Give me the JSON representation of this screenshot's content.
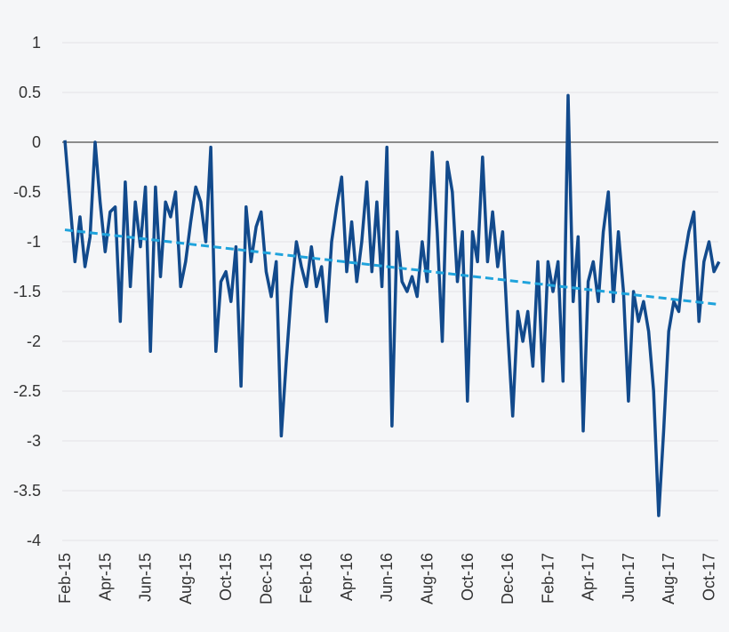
{
  "chart_data": {
    "type": "line",
    "categories": [
      "Feb-15",
      null,
      null,
      null,
      null,
      null,
      null,
      null,
      "Apr-15",
      null,
      null,
      null,
      null,
      null,
      null,
      null,
      "Jun-15",
      null,
      null,
      null,
      null,
      null,
      null,
      null,
      "Aug-15",
      null,
      null,
      null,
      null,
      null,
      null,
      null,
      "Oct-15",
      null,
      null,
      null,
      null,
      null,
      null,
      null,
      "Dec-15",
      null,
      null,
      null,
      null,
      null,
      null,
      null,
      "Feb-16",
      null,
      null,
      null,
      null,
      null,
      null,
      null,
      "Apr-16",
      null,
      null,
      null,
      null,
      null,
      null,
      null,
      "Jun-16",
      null,
      null,
      null,
      null,
      null,
      null,
      null,
      "Aug-16",
      null,
      null,
      null,
      null,
      null,
      null,
      null,
      "Oct-16",
      null,
      null,
      null,
      null,
      null,
      null,
      null,
      "Dec-16",
      null,
      null,
      null,
      null,
      null,
      null,
      null,
      "Feb-17",
      null,
      null,
      null,
      null,
      null,
      null,
      null,
      "Apr-17",
      null,
      null,
      null,
      null,
      null,
      null,
      null,
      "Jun-17",
      null,
      null,
      null,
      null,
      null,
      null,
      null,
      "Aug-17",
      null,
      null,
      null,
      null,
      null,
      null,
      null,
      "Oct-17",
      null,
      null
    ],
    "series": [
      {
        "color": "#124a8c",
        "values": [
          0.02,
          -0.6,
          -1.2,
          -0.75,
          -1.25,
          -0.95,
          0.0,
          -0.6,
          -1.1,
          -0.7,
          -0.65,
          -1.8,
          -0.4,
          -1.45,
          -0.6,
          -1.05,
          -0.45,
          -2.1,
          -0.45,
          -1.35,
          -0.6,
          -0.75,
          -0.5,
          -1.45,
          -1.2,
          -0.8,
          -0.45,
          -0.6,
          -1.0,
          -0.05,
          -2.1,
          -1.4,
          -1.3,
          -1.6,
          -1.05,
          -2.45,
          -0.65,
          -1.2,
          -0.85,
          -0.7,
          -1.3,
          -1.55,
          -1.2,
          -2.95,
          -2.2,
          -1.5,
          -1.0,
          -1.25,
          -1.45,
          -1.05,
          -1.45,
          -1.25,
          -1.8,
          -1.0,
          -0.65,
          -0.35,
          -1.3,
          -0.8,
          -1.4,
          -1.0,
          -0.4,
          -1.3,
          -0.6,
          -1.45,
          -0.05,
          -2.85,
          -0.9,
          -1.4,
          -1.5,
          -1.35,
          -1.55,
          -1.0,
          -1.4,
          -0.1,
          -0.9,
          -2.0,
          -0.2,
          -0.5,
          -1.4,
          -0.9,
          -2.6,
          -0.9,
          -1.2,
          -0.15,
          -1.2,
          -0.7,
          -1.25,
          -0.9,
          -1.9,
          -2.75,
          -1.7,
          -2.0,
          -1.7,
          -2.25,
          -1.2,
          -2.4,
          -1.2,
          -1.5,
          -1.2,
          -2.4,
          0.47,
          -1.6,
          -0.95,
          -2.9,
          -1.4,
          -1.2,
          -1.6,
          -0.9,
          -0.5,
          -1.6,
          -0.9,
          -1.5,
          -2.6,
          -1.5,
          -1.8,
          -1.6,
          -1.9,
          -2.5,
          -3.75,
          -2.9,
          -1.9,
          -1.6,
          -1.7,
          -1.2,
          -0.9,
          -0.7,
          -1.8,
          -1.2,
          -1.0,
          -1.3,
          -1.2
        ]
      }
    ],
    "trend": {
      "color": "#1fa3dc",
      "start": -0.88,
      "end": -1.63
    },
    "ylim": [
      -4,
      1
    ],
    "yticks": [
      1,
      0.5,
      0,
      -0.5,
      -1,
      -1.5,
      -2,
      -2.5,
      -3,
      -3.5,
      -4
    ],
    "grid": true
  }
}
